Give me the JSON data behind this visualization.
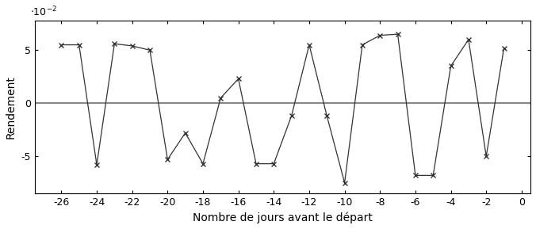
{
  "x": [
    -26,
    -25,
    -24,
    -23,
    -22,
    -21,
    -20,
    -19,
    -18,
    -17,
    -16,
    -15,
    -14,
    -13,
    -12,
    -11,
    -10,
    -9,
    -8,
    -7,
    -6,
    -5,
    -4,
    -3,
    -2,
    -1
  ],
  "y": [
    0.055,
    0.055,
    -0.058,
    0.056,
    0.054,
    0.05,
    -0.053,
    -0.028,
    -0.057,
    0.005,
    0.023,
    -0.057,
    -0.057,
    -0.012,
    0.055,
    -0.012,
    -0.075,
    0.055,
    0.064,
    0.065,
    -0.068,
    -0.068,
    0.035,
    0.06,
    -0.05,
    0.052
  ],
  "xlabel": "Nombre de jours avant le départ",
  "ylabel": "Rendement",
  "scale_label": "$\\cdot10^{-2}$",
  "line_color": "#333333",
  "marker": "x",
  "xlim": [
    -27.5,
    0.5
  ],
  "ylim": [
    -0.085,
    0.078
  ],
  "xticks": [
    -26,
    -24,
    -22,
    -20,
    -18,
    -16,
    -14,
    -12,
    -10,
    -8,
    -6,
    -4,
    -2,
    0
  ],
  "yticks": [
    -0.05,
    0.0,
    0.05
  ],
  "ytick_labels": [
    "-5",
    "0",
    "5"
  ],
  "hline_y": 0.0,
  "hline_color": "#888888",
  "hline_lw": 1.5
}
